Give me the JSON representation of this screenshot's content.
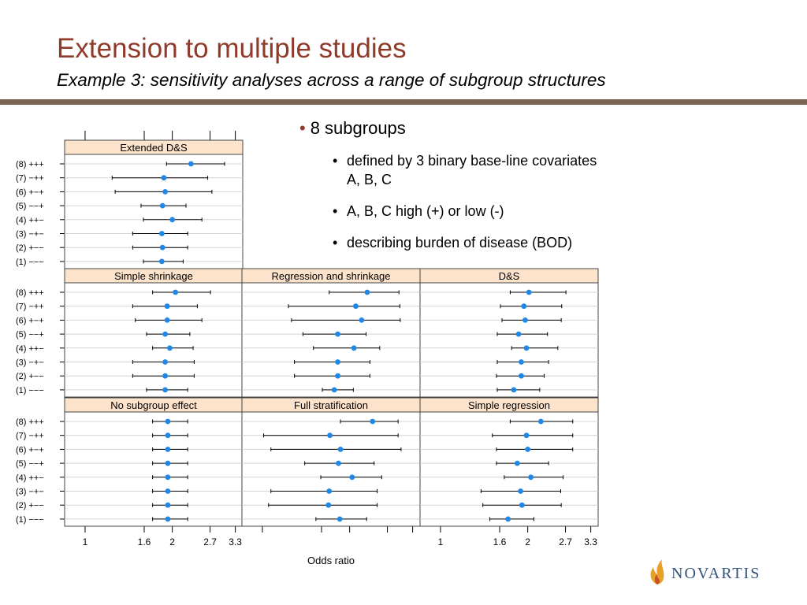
{
  "slide": {
    "title": "Extension to multiple studies",
    "subtitle": "Example 3: sensitivity analyses across a range of subgroup structures"
  },
  "bullets": {
    "main": "8 subgroups",
    "sub1_line1": "defined by 3 binary base-line covariates",
    "sub1_line2": "A, B, C",
    "sub2": "A, B, C high (+) or low (-)",
    "sub3": "describing burden of disease (BOD)"
  },
  "logo": {
    "text": "NOVARTIS",
    "icon": "novartis-flame-icon"
  },
  "colors": {
    "title": "#8f3a2a",
    "rule": "#7a6552",
    "strip": "#fde3cc",
    "point": "#1f87e8",
    "logo": "#33537a"
  },
  "chart_data": {
    "type": "forest",
    "xlabel": "Odds ratio",
    "x_scale": "log",
    "xlim": [
      0.85,
      3.5
    ],
    "xticks": [
      1,
      1.6,
      2,
      2.7,
      3.3
    ],
    "xtick_labels": [
      "1",
      "1.6",
      "2",
      "2.7",
      "3.3"
    ],
    "grid": true,
    "rows": [
      "(1) −−−",
      "(2) +−−",
      "(3) −+−",
      "(4) ++−",
      "(5) −−+",
      "(6) +−+",
      "(7) −++",
      "(8) +++"
    ],
    "panels": [
      {
        "name": "Extended D&S",
        "row": 0,
        "col": 0,
        "lo": [
          1.59,
          1.46,
          1.46,
          1.59,
          1.56,
          1.27,
          1.24,
          1.91
        ],
        "est": [
          1.84,
          1.85,
          1.84,
          2.0,
          1.85,
          1.89,
          1.87,
          2.32
        ],
        "hi": [
          2.18,
          2.26,
          2.26,
          2.53,
          2.23,
          2.74,
          2.65,
          3.03
        ]
      },
      {
        "name": "Simple shrinkage",
        "row": 1,
        "col": 0,
        "lo": [
          1.63,
          1.46,
          1.46,
          1.71,
          1.63,
          1.49,
          1.46,
          1.71
        ],
        "est": [
          1.89,
          1.89,
          1.89,
          1.96,
          1.89,
          1.92,
          1.92,
          2.05
        ],
        "hi": [
          2.26,
          2.38,
          2.38,
          2.36,
          2.3,
          2.53,
          2.44,
          2.71
        ]
      },
      {
        "name": "Regression and shrinkage",
        "row": 1,
        "col": 1,
        "lo": [
          1.61,
          1.29,
          1.29,
          1.5,
          1.38,
          1.26,
          1.23,
          1.7
        ],
        "est": [
          1.77,
          1.82,
          1.82,
          2.07,
          1.82,
          2.2,
          2.1,
          2.3
        ],
        "hi": [
          2.06,
          2.35,
          2.35,
          2.54,
          2.28,
          2.99,
          2.98,
          2.96
        ]
      },
      {
        "name": "D&S",
        "row": 1,
        "col": 2,
        "lo": [
          1.57,
          1.56,
          1.57,
          1.76,
          1.57,
          1.63,
          1.61,
          1.74
        ],
        "est": [
          1.79,
          1.9,
          1.9,
          1.98,
          1.86,
          1.96,
          1.94,
          2.02
        ],
        "hi": [
          2.2,
          2.28,
          2.36,
          2.54,
          2.34,
          2.61,
          2.62,
          2.71
        ]
      },
      {
        "name": "No subgroup effect",
        "row": 2,
        "col": 0,
        "lo": [
          1.71,
          1.71,
          1.71,
          1.71,
          1.71,
          1.71,
          1.71,
          1.71
        ],
        "est": [
          1.93,
          1.93,
          1.93,
          1.93,
          1.93,
          1.93,
          1.93,
          1.93
        ],
        "hi": [
          2.26,
          2.26,
          2.26,
          2.26,
          2.26,
          2.26,
          2.26,
          2.26
        ]
      },
      {
        "name": "Full stratification",
        "row": 2,
        "col": 1,
        "lo": [
          1.53,
          1.05,
          1.07,
          1.59,
          1.4,
          1.07,
          1.01,
          1.86
        ],
        "est": [
          1.85,
          1.69,
          1.7,
          2.04,
          1.83,
          1.86,
          1.71,
          2.4
        ],
        "hi": [
          2.29,
          2.49,
          2.49,
          2.58,
          2.43,
          3.01,
          2.94,
          2.94
        ]
      },
      {
        "name": "Simple regression",
        "row": 2,
        "col": 2,
        "lo": [
          1.48,
          1.4,
          1.38,
          1.66,
          1.56,
          1.56,
          1.51,
          1.74
        ],
        "est": [
          1.71,
          1.91,
          1.89,
          2.05,
          1.84,
          2.0,
          1.98,
          2.22
        ],
        "hi": [
          2.1,
          2.61,
          2.6,
          2.65,
          2.36,
          2.86,
          2.86,
          2.86
        ]
      }
    ]
  }
}
